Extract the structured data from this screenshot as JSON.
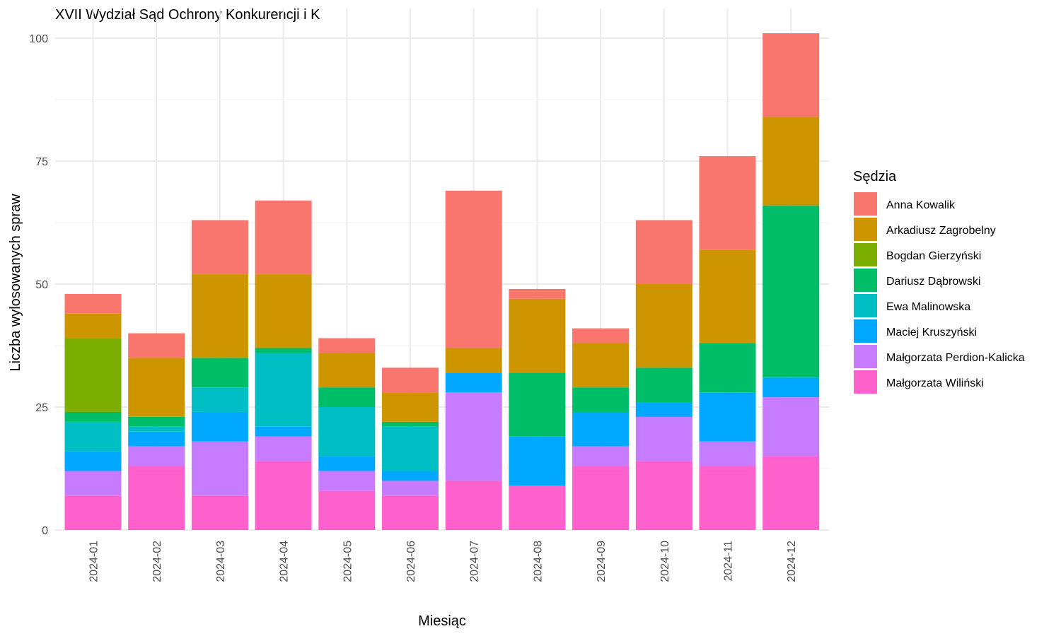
{
  "chart_data": {
    "type": "bar",
    "stacked": true,
    "title": "XVII Wydział Sąd Ochrony Konkurencji i K",
    "xlabel": "Miesiąc",
    "ylabel": "Liczba wylosowanych spraw",
    "ylim": [
      0,
      101
    ],
    "yticks": [
      0,
      25,
      50,
      75,
      100
    ],
    "grid": true,
    "legend": {
      "title": "Sędzia",
      "position": "right"
    },
    "categories": [
      "2024-01",
      "2024-02",
      "2024-03",
      "2024-04",
      "2024-05",
      "2024-06",
      "2024-07",
      "2024-08",
      "2024-09",
      "2024-10",
      "2024-11",
      "2024-12"
    ],
    "series": [
      {
        "name": "Małgorzata Wiliński",
        "color": "#FF61CC",
        "values": [
          7,
          13,
          7,
          14,
          8,
          7,
          10,
          9,
          13,
          14,
          13,
          15
        ]
      },
      {
        "name": "Małgorzata Perdion-Kalicka",
        "color": "#C77CFF",
        "values": [
          5,
          4,
          11,
          5,
          4,
          3,
          18,
          0,
          4,
          9,
          5,
          12
        ]
      },
      {
        "name": "Maciej Kruszyński",
        "color": "#00A9FF",
        "values": [
          4,
          3,
          6,
          2,
          3,
          2,
          4,
          10,
          7,
          3,
          10,
          4
        ]
      },
      {
        "name": "Ewa Malinowska",
        "color": "#00BFC4",
        "values": [
          6,
          1,
          5,
          15,
          10,
          9,
          0,
          0,
          0,
          0,
          0,
          0
        ]
      },
      {
        "name": "Dariusz Dąbrowski",
        "color": "#00BE67",
        "values": [
          2,
          2,
          6,
          1,
          4,
          1,
          0,
          13,
          5,
          7,
          10,
          35
        ]
      },
      {
        "name": "Bogdan Gierzyński",
        "color": "#7CAE00",
        "values": [
          15,
          0,
          0,
          0,
          0,
          0,
          0,
          0,
          0,
          0,
          0,
          0
        ]
      },
      {
        "name": "Arkadiusz Zagrobelny",
        "color": "#CD9600",
        "values": [
          5,
          12,
          17,
          15,
          7,
          6,
          5,
          15,
          9,
          17,
          19,
          18
        ]
      },
      {
        "name": "Anna Kowalik",
        "color": "#F8766D",
        "values": [
          4,
          5,
          11,
          15,
          3,
          5,
          32,
          2,
          3,
          13,
          19,
          17
        ]
      }
    ],
    "legend_order": [
      "Anna Kowalik",
      "Arkadiusz Zagrobelny",
      "Bogdan Gierzyński",
      "Dariusz Dąbrowski",
      "Ewa Malinowska",
      "Maciej Kruszyński",
      "Małgorzata Perdion-Kalicka",
      "Małgorzata Wiliński"
    ]
  }
}
